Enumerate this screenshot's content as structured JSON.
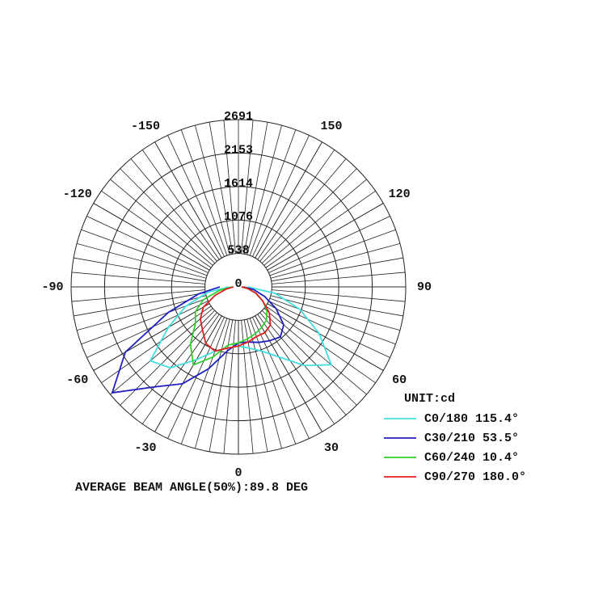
{
  "chart_data": {
    "type": "polar",
    "rlim": [
      0,
      2691
    ],
    "rticks": [
      0,
      538,
      1076,
      1614,
      2153,
      2691
    ],
    "angle_ticks": [
      -150,
      150,
      -120,
      120,
      -90,
      90,
      -60,
      60,
      -30,
      30,
      0
    ],
    "unit": "UNIT:cd",
    "angles": [
      -90,
      -80,
      -70,
      -60,
      -50,
      -40,
      -30,
      -20,
      -10,
      0,
      10,
      20,
      30,
      40,
      50,
      60,
      70,
      80,
      90
    ],
    "series": [
      {
        "name": "C0/180 115.4°",
        "color": "#40e0e0",
        "values": [
          150,
          500,
          900,
          1300,
          1850,
          1700,
          1350,
          1100,
          1000,
          950,
          1000,
          1100,
          1300,
          1650,
          1950,
          1500,
          1050,
          600,
          150
        ]
      },
      {
        "name": "C30/210 53.5°",
        "color": "#2020c0",
        "values": [
          300,
          650,
          1200,
          2100,
          2650,
          2100,
          1800,
          1400,
          1050,
          900,
          900,
          950,
          1000,
          1050,
          950,
          700,
          450,
          250,
          80
        ]
      },
      {
        "name": "C60/240 10.4°",
        "color": "#30d030",
        "values": [
          100,
          300,
          600,
          800,
          900,
          1200,
          1450,
          1200,
          950,
          900,
          850,
          800,
          750,
          700,
          600,
          450,
          300,
          150,
          50
        ]
      },
      {
        "name": "C90/270 180.0°",
        "color": "#e02020",
        "values": [
          80,
          200,
          400,
          650,
          800,
          900,
          1050,
          1100,
          1000,
          950,
          900,
          850,
          850,
          800,
          650,
          450,
          300,
          150,
          50
        ]
      }
    ],
    "footer": "AVERAGE BEAM ANGLE(50%):89.8 DEG"
  }
}
